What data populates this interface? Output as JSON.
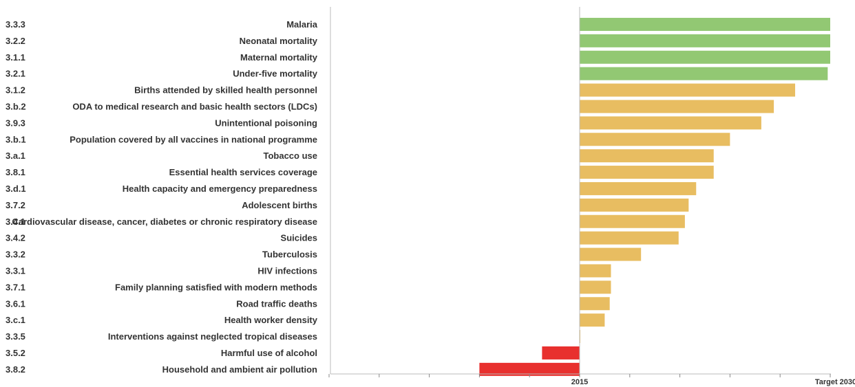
{
  "chart_data": {
    "type": "bar",
    "orientation": "horizontal",
    "x_ticks": [
      {
        "value": 0,
        "label": "2015"
      },
      {
        "value": 1,
        "label": "Target 2030"
      }
    ],
    "xlim": [
      -1,
      1
    ],
    "colors": {
      "achieved": "#92c873",
      "progress": "#e8bd61",
      "regress": "#e8302e",
      "axis": "#bbbbbb",
      "text": "#333333"
    },
    "bars": [
      {
        "code": "3.3.3",
        "label": "Malaria",
        "value": 1.0,
        "status": "achieved"
      },
      {
        "code": "3.2.2",
        "label": "Neonatal mortality",
        "value": 1.0,
        "status": "achieved"
      },
      {
        "code": "3.1.1",
        "label": "Maternal mortality",
        "value": 1.0,
        "status": "achieved"
      },
      {
        "code": "3.2.1",
        "label": "Under-five mortality",
        "value": 0.99,
        "status": "achieved"
      },
      {
        "code": "3.1.2",
        "label": "Births attended by skilled health personnel",
        "value": 0.86,
        "status": "progress"
      },
      {
        "code": "3.b.2",
        "label": "ODA to medical research and basic health sectors (LDCs)",
        "value": 0.775,
        "status": "progress"
      },
      {
        "code": "3.9.3",
        "label": "Unintentional poisoning",
        "value": 0.725,
        "status": "progress"
      },
      {
        "code": "3.b.1",
        "label": "Population covered by all vaccines in national programme",
        "value": 0.6,
        "status": "progress"
      },
      {
        "code": "3.a.1",
        "label": "Tobacco use",
        "value": 0.535,
        "status": "progress"
      },
      {
        "code": "3.8.1",
        "label": "Essential health services coverage",
        "value": 0.535,
        "status": "progress"
      },
      {
        "code": "3.d.1",
        "label": "Health capacity and emergency preparedness",
        "value": 0.465,
        "status": "progress"
      },
      {
        "code": "3.7.2",
        "label": "Adolescent births",
        "value": 0.435,
        "status": "progress"
      },
      {
        "code": "3.4.1",
        "label": "Cardiovascular disease, cancer, diabetes or chronic respiratory disease",
        "value": 0.42,
        "status": "progress"
      },
      {
        "code": "3.4.2",
        "label": "Suicides",
        "value": 0.395,
        "status": "progress"
      },
      {
        "code": "3.3.2",
        "label": "Tuberculosis",
        "value": 0.245,
        "status": "progress"
      },
      {
        "code": "3.3.1",
        "label": "HIV infections",
        "value": 0.125,
        "status": "progress"
      },
      {
        "code": "3.7.1",
        "label": "Family planning satisfied with modern methods",
        "value": 0.125,
        "status": "progress"
      },
      {
        "code": "3.6.1",
        "label": "Road traffic deaths",
        "value": 0.12,
        "status": "progress"
      },
      {
        "code": "3.c.1",
        "label": "Health worker density",
        "value": 0.1,
        "status": "progress"
      },
      {
        "code": "3.3.5",
        "label": "Interventions against neglected tropical diseases",
        "value": 0.0,
        "status": "progress"
      },
      {
        "code": "3.5.2",
        "label": "Harmful use of alcohol",
        "value": -0.15,
        "status": "regress"
      },
      {
        "code": "3.8.2",
        "label": "Household and ambient air pollution",
        "value": -0.4,
        "status": "regress"
      }
    ]
  }
}
